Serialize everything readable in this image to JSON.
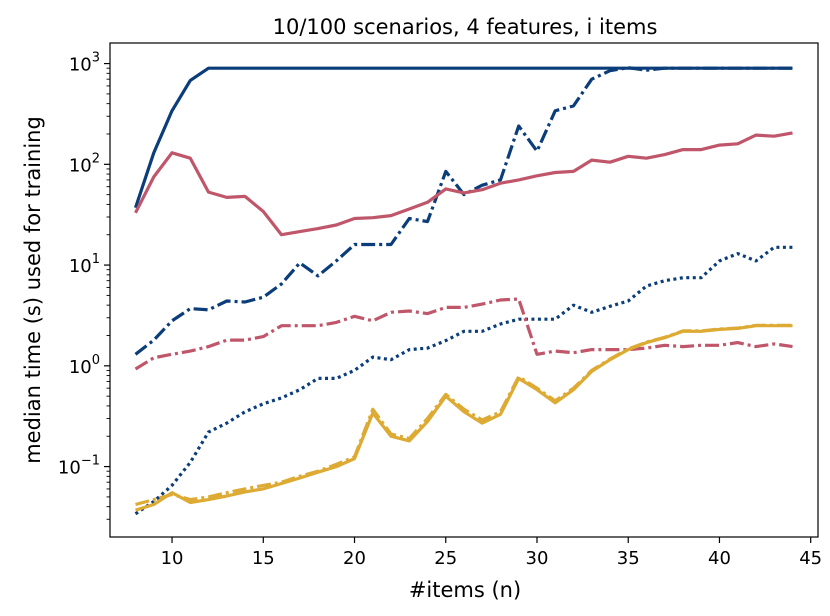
{
  "chart_data": {
    "type": "line",
    "title": "10/100 scenarios, 4 features, i items",
    "xlabel": "#items (n)",
    "ylabel": "median time (s) used for training",
    "x_ticks": [
      10,
      15,
      20,
      25,
      30,
      35,
      40,
      45
    ],
    "y_ticks": [
      {
        "value": 0.1,
        "base": "10",
        "exp": "−1"
      },
      {
        "value": 1,
        "base": "10",
        "exp": "0"
      },
      {
        "value": 10,
        "base": "10",
        "exp": "1"
      },
      {
        "value": 100,
        "base": "10",
        "exp": "2"
      },
      {
        "value": 1000,
        "base": "10",
        "exp": "3"
      }
    ],
    "xlim": [
      6.6,
      45.4
    ],
    "ylim": [
      0.02,
      1600
    ],
    "yscale": "log",
    "grid": false,
    "legend": "none",
    "x": [
      8,
      9,
      10,
      11,
      12,
      13,
      14,
      15,
      16,
      17,
      18,
      19,
      20,
      21,
      22,
      23,
      24,
      25,
      26,
      27,
      28,
      29,
      30,
      31,
      32,
      33,
      34,
      35,
      36,
      37,
      38,
      39,
      40,
      41,
      42,
      43,
      44
    ],
    "series": [
      {
        "color": "#0b3d7a",
        "dash": "solid",
        "values": [
          37,
          130,
          340,
          680,
          900,
          900,
          900,
          900,
          900,
          900,
          900,
          900,
          900,
          900,
          900,
          900,
          900,
          900,
          900,
          900,
          900,
          900,
          900,
          900,
          900,
          900,
          900,
          900,
          900,
          900,
          900,
          900,
          900,
          900,
          900,
          900,
          900
        ]
      },
      {
        "color": "#0b3d7a",
        "dash": "dashdot",
        "values": [
          1.3,
          1.8,
          2.8,
          3.7,
          3.6,
          4.4,
          4.3,
          4.8,
          6.5,
          10.5,
          7.8,
          11,
          16,
          16,
          16,
          29,
          27,
          85,
          50,
          62,
          70,
          240,
          135,
          340,
          380,
          700,
          850,
          910,
          860,
          900,
          900,
          900,
          900,
          900,
          900,
          900,
          900
        ]
      },
      {
        "color": "#0b3d7a",
        "dash": "dotted",
        "values": [
          0.034,
          0.045,
          0.065,
          0.11,
          0.22,
          0.27,
          0.35,
          0.42,
          0.48,
          0.58,
          0.75,
          0.75,
          0.9,
          1.22,
          1.15,
          1.45,
          1.5,
          1.78,
          2.2,
          2.2,
          2.6,
          2.9,
          2.9,
          2.9,
          4,
          3.4,
          3.9,
          4.4,
          6.2,
          7,
          7.5,
          7.5,
          11,
          13,
          11,
          15,
          15
        ]
      },
      {
        "color": "#c0566a",
        "dash": "solid",
        "values": [
          33,
          75,
          130,
          115,
          53,
          47,
          48,
          34,
          20,
          21.5,
          23,
          25,
          29,
          29.5,
          31,
          36,
          42,
          57,
          52,
          56,
          65,
          70,
          77,
          83,
          85,
          110,
          105,
          120,
          115,
          125,
          140,
          140,
          155,
          160,
          195,
          190,
          205
        ]
      },
      {
        "color": "#c0566a",
        "dash": "dashdot",
        "values": [
          0.93,
          1.2,
          1.3,
          1.4,
          1.55,
          1.8,
          1.8,
          1.95,
          2.5,
          2.5,
          2.5,
          2.7,
          3.1,
          2.8,
          3.4,
          3.5,
          3.3,
          3.8,
          3.8,
          4.1,
          4.5,
          4.6,
          1.3,
          1.4,
          1.35,
          1.45,
          1.45,
          1.45,
          1.5,
          1.6,
          1.55,
          1.6,
          1.6,
          1.7,
          1.55,
          1.65,
          1.55
        ]
      },
      {
        "color": "#ddaa33",
        "dash": "solid",
        "values": [
          0.037,
          0.042,
          0.055,
          0.044,
          0.047,
          0.051,
          0.056,
          0.06,
          0.068,
          0.077,
          0.088,
          0.1,
          0.12,
          0.34,
          0.2,
          0.18,
          0.28,
          0.5,
          0.35,
          0.27,
          0.33,
          0.75,
          0.58,
          0.43,
          0.58,
          0.88,
          1.15,
          1.45,
          1.7,
          1.9,
          2.2,
          2.2,
          2.3,
          2.35,
          2.5,
          2.5,
          2.5
        ]
      },
      {
        "color": "#ddaa33",
        "dash": "dashdot",
        "values": [
          0.042,
          0.047,
          0.053,
          0.047,
          0.05,
          0.055,
          0.06,
          0.065,
          0.07,
          0.08,
          0.09,
          0.105,
          0.125,
          0.37,
          0.21,
          0.19,
          0.3,
          0.52,
          0.37,
          0.29,
          0.35,
          0.78,
          0.6,
          0.45,
          0.6,
          0.9,
          1.17,
          1.47,
          1.72,
          1.92,
          2.22,
          2.22,
          2.32,
          2.37,
          2.52,
          2.52,
          2.52
        ]
      }
    ]
  }
}
